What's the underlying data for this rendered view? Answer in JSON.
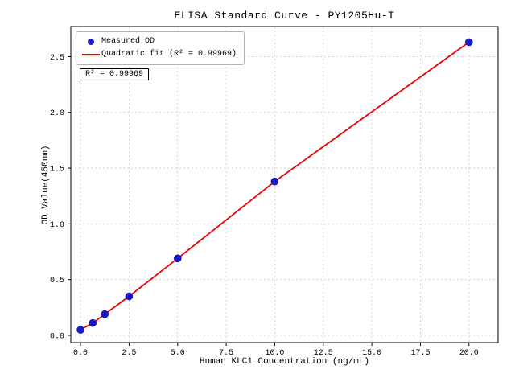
{
  "chart_data": {
    "type": "scatter",
    "title": "ELISA Standard Curve - PY1205Hu-T",
    "xlabel": "Human KLC1 Concentration (ng/mL)",
    "ylabel": "OD Value(450nm)",
    "xlim": [
      -0.5,
      21.5
    ],
    "ylim": [
      -0.065,
      2.77
    ],
    "x_tick_labels": [
      "0.0",
      "2.5",
      "5.0",
      "7.5",
      "10.0",
      "12.5",
      "15.0",
      "17.5",
      "20.0"
    ],
    "y_tick_labels": [
      "0.0",
      "0.5",
      "1.0",
      "1.5",
      "2.0",
      "2.5"
    ],
    "grid": true,
    "legend_position": "upper left",
    "annotation": "R² = 0.99969",
    "r_squared": 0.99969,
    "series": [
      {
        "name": "Measured OD",
        "type": "scatter",
        "color": "#1a1acd",
        "x": [
          0,
          0.625,
          1.25,
          2.5,
          5,
          10,
          20
        ],
        "y": [
          0.05,
          0.11,
          0.19,
          0.35,
          0.69,
          1.38,
          2.63
        ]
      },
      {
        "name": "Quadratic fit (R² = 0.99969)",
        "type": "line",
        "color": "#ee0000",
        "x": [
          0,
          0.625,
          1.25,
          2.5,
          5,
          10,
          20
        ],
        "y": [
          0.05,
          0.11,
          0.19,
          0.35,
          0.69,
          1.38,
          2.63
        ]
      }
    ]
  }
}
